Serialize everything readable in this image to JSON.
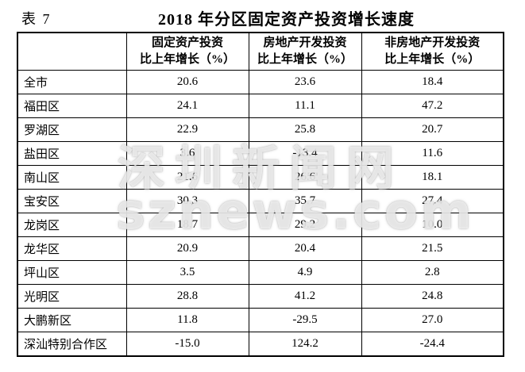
{
  "page": {
    "table_label": "表 7",
    "title": "2018 年分区固定资产投资增长速度",
    "background_color": "#ffffff",
    "text_color": "#000000",
    "border_color": "#000000"
  },
  "watermark": {
    "line1": "深圳新闻网",
    "line2": "sznews.com"
  },
  "table": {
    "col_headers": [
      "",
      "固定资产投资\n比上年增长（%）",
      "房地产开发投资\n比上年增长（%）",
      "非房地产开发投资\n比上年增长（%）"
    ],
    "rows": [
      {
        "district": "全市",
        "values": [
          "20.6",
          "23.6",
          "18.4"
        ]
      },
      {
        "district": "福田区",
        "values": [
          "24.1",
          "11.1",
          "47.2"
        ]
      },
      {
        "district": "罗湖区",
        "values": [
          "22.9",
          "25.8",
          "20.7"
        ]
      },
      {
        "district": "盐田区",
        "values": [
          "3.6",
          "-13.4",
          "11.6"
        ]
      },
      {
        "district": "南山区",
        "values": [
          "21.6",
          "26.6",
          "18.1"
        ]
      },
      {
        "district": "宝安区",
        "values": [
          "30.3",
          "35.7",
          "27.4"
        ]
      },
      {
        "district": "龙岗区",
        "values": [
          "18.7",
          "29.2",
          "10.0"
        ]
      },
      {
        "district": "龙华区",
        "values": [
          "20.9",
          "20.4",
          "21.5"
        ]
      },
      {
        "district": "坪山区",
        "values": [
          "3.5",
          "4.9",
          "2.8"
        ]
      },
      {
        "district": "光明区",
        "values": [
          "28.8",
          "41.2",
          "24.8"
        ]
      },
      {
        "district": "大鹏新区",
        "values": [
          "11.8",
          "-29.5",
          "27.0"
        ]
      },
      {
        "district": "深汕特别合作区",
        "values": [
          "-15.0",
          "124.2",
          "-24.4"
        ]
      }
    ]
  }
}
